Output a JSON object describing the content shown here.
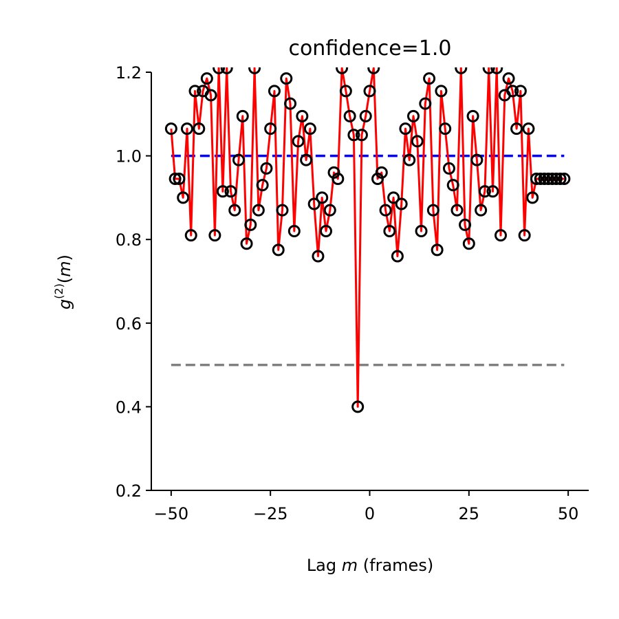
{
  "chart_data": {
    "type": "line",
    "title": "confidence=1.0",
    "xlabel": "Lag m (frames)",
    "xlabel_parts": {
      "prefix": "Lag ",
      "var": "m",
      "suffix": " (frames)"
    },
    "ylabel": "g(2)(m)",
    "ylabel_parts": {
      "base": "g",
      "sup": "(2)",
      "open": "(",
      "var": "m",
      "close": ")"
    },
    "xlim": [
      -55,
      55
    ],
    "ylim": [
      0.2,
      1.2
    ],
    "x_ticks": [
      -50,
      -25,
      0,
      25,
      50
    ],
    "x_tick_labels": [
      "−50",
      "−25",
      "0",
      "25",
      "50"
    ],
    "y_ticks": [
      0.2,
      0.4,
      0.6,
      0.8,
      1.0,
      1.2
    ],
    "y_tick_labels": [
      "0.2",
      "0.4",
      "0.6",
      "0.8",
      "1.0",
      "1.2"
    ],
    "grid": false,
    "colors": {
      "line": "#ff0000",
      "marker_edge": "#000000",
      "ref_high": "#0000ff",
      "ref_low": "#808080"
    },
    "reference_lines": [
      {
        "y": 1.0,
        "style": "dashed",
        "color": "#0000ff"
      },
      {
        "y": 0.5,
        "style": "dashed",
        "color": "#808080"
      }
    ],
    "series": [
      {
        "x": [
          -50,
          -49,
          -48,
          -47,
          -46,
          -45,
          -44,
          -43,
          -42,
          -41,
          -40,
          -39,
          -38,
          -37,
          -36,
          -35,
          -34,
          -33,
          -32,
          -31,
          -30,
          -29,
          -28,
          -27,
          -26,
          -25,
          -24,
          -23,
          -22,
          -21,
          -20,
          -19,
          -18,
          -17,
          -16,
          -15,
          -14,
          -13,
          -12,
          -11,
          -10,
          -9,
          -8,
          -7,
          -6,
          -5,
          -4,
          -3,
          -2,
          -1,
          0,
          1,
          2,
          3,
          4,
          5,
          6,
          7,
          8,
          9,
          10,
          11,
          12,
          13,
          14,
          15,
          16,
          17,
          18,
          19,
          20,
          21,
          22,
          23,
          24,
          25,
          26,
          27,
          28,
          29,
          30,
          31,
          32,
          33,
          34,
          35,
          36,
          37,
          38,
          39,
          40,
          41,
          42,
          43,
          44,
          45,
          46,
          47,
          48,
          49
        ],
        "y": [
          1.065,
          0.945,
          0.945,
          0.9,
          1.065,
          0.81,
          1.155,
          1.065,
          1.155,
          1.185,
          1.145,
          0.81,
          1.21,
          0.915,
          1.21,
          0.915,
          0.87,
          0.99,
          1.095,
          0.79,
          0.835,
          1.21,
          0.87,
          0.93,
          0.97,
          1.065,
          1.155,
          0.775,
          0.87,
          1.185,
          1.125,
          0.82,
          1.035,
          1.095,
          0.99,
          1.065,
          0.885,
          0.76,
          0.9,
          0.82,
          0.87,
          0.96,
          0.945,
          1.21,
          1.155,
          1.095,
          1.05,
          0.4,
          1.05,
          1.095,
          1.155,
          1.21,
          0.945,
          0.96,
          0.87,
          0.82,
          0.9,
          0.76,
          0.885,
          1.065,
          0.99,
          1.095,
          1.035,
          0.82,
          1.125,
          1.185,
          0.87,
          0.775,
          1.155,
          1.065,
          0.97,
          0.93,
          0.87,
          1.21,
          0.835,
          0.79,
          1.095,
          0.99,
          0.87,
          0.915,
          1.21,
          0.915,
          1.21,
          0.81,
          1.145,
          1.185,
          1.155,
          1.065,
          1.155,
          0.81,
          1.065,
          0.9,
          0.945,
          0.945,
          0.945,
          0.945,
          0.945,
          0.945,
          0.945,
          0.945
        ]
      }
    ]
  }
}
